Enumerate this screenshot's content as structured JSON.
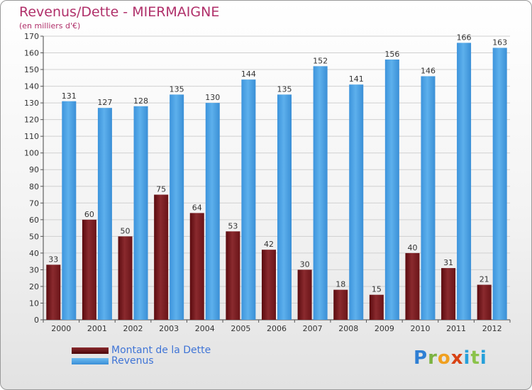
{
  "header": {
    "title": "Revenus/Dette - MIERMAIGNE",
    "subtitle": "(en milliers d'€)"
  },
  "chart_data": {
    "type": "bar",
    "title": "Revenus/Dette - MIERMAIGNE",
    "ylabel": "(en milliers d'€)",
    "xlabel": "",
    "categories": [
      "2000",
      "2001",
      "2002",
      "2003",
      "2004",
      "2005",
      "2006",
      "2007",
      "2008",
      "2009",
      "2010",
      "2011",
      "2012"
    ],
    "series": [
      {
        "name": "Montant de la Dette",
        "color": "#7a1e22",
        "values": [
          33,
          60,
          50,
          75,
          64,
          53,
          42,
          30,
          18,
          15,
          40,
          31,
          21
        ]
      },
      {
        "name": "Revenus",
        "color": "#4da3e6",
        "values": [
          131,
          127,
          128,
          135,
          130,
          144,
          135,
          152,
          141,
          156,
          146,
          166,
          163
        ]
      }
    ],
    "ylim": [
      0,
      170
    ],
    "ytick_step": 10,
    "grid": true,
    "legend": "bottom-left"
  },
  "legend": {
    "items": [
      {
        "label": "Montant de la Dette",
        "color": "#6a0f12"
      },
      {
        "label": "Revenus",
        "color": "#4da3e6"
      }
    ]
  },
  "logo": {
    "letters": [
      "P",
      "r",
      "o",
      "x",
      "i",
      "t",
      "i"
    ]
  }
}
